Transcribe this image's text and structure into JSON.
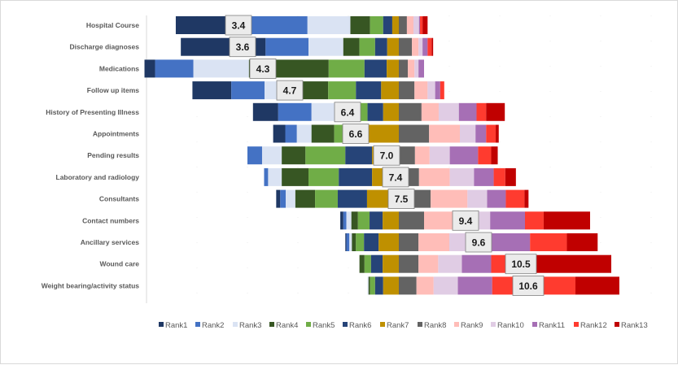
{
  "chart_data": {
    "type": "bar",
    "orientation": "horizontal",
    "stacked": true,
    "diverging": true,
    "units": "percent",
    "title": "",
    "xlabel": "",
    "ylabel": "",
    "grid": true,
    "legend_position": "bottom",
    "categories": [
      "Hospital Course",
      "Discharge diagnoses",
      "Medications",
      "Follow up items",
      "History of Presenting Illness",
      "Appointments",
      "Pending results",
      "Laboratory and radiology",
      "Consultants",
      "Contact numbers",
      "Ancillary services",
      "Wound care",
      "Weight bearing/activity status"
    ],
    "mean_rank_labels": [
      "3.4",
      "3.6",
      "4.3",
      "4.7",
      "6.4",
      "6.6",
      "7.0",
      "7.4",
      "7.5",
      "9.4",
      "9.6",
      "10.5",
      "10.6"
    ],
    "series": [
      {
        "name": "Rank1",
        "color": "#1f3864",
        "values": [
          14.8,
          16.8,
          2.1,
          7.7,
          5.0,
          2.4,
          0.0,
          0.0,
          0.8,
          0.6,
          0.2,
          0.0,
          0.0
        ]
      },
      {
        "name": "Rank2",
        "color": "#4472c4",
        "values": [
          11.3,
          8.5,
          7.6,
          6.6,
          6.6,
          2.3,
          2.9,
          0.8,
          1.1,
          0.6,
          0.6,
          0.0,
          0.0
        ]
      },
      {
        "name": "Rank3",
        "color": "#dae3f3",
        "values": [
          8.5,
          6.9,
          11.0,
          6.5,
          5.8,
          2.9,
          3.9,
          2.7,
          1.9,
          1.0,
          0.5,
          0.0,
          0.2
        ]
      },
      {
        "name": "Rank4",
        "color": "#375623",
        "values": [
          3.9,
          3.2,
          15.8,
          6.1,
          3.7,
          4.5,
          4.7,
          5.3,
          3.9,
          1.3,
          0.8,
          1.0,
          0.3
        ]
      },
      {
        "name": "Rank5",
        "color": "#70ad47",
        "values": [
          2.6,
          3.1,
          7.1,
          5.5,
          1.6,
          5.0,
          7.9,
          6.0,
          4.5,
          2.3,
          1.6,
          1.3,
          1.0
        ]
      },
      {
        "name": "Rank6",
        "color": "#264478",
        "values": [
          1.8,
          2.4,
          4.4,
          5.0,
          3.1,
          1.8,
          5.3,
          6.6,
          5.8,
          2.6,
          2.9,
          2.3,
          1.6
        ]
      },
      {
        "name": "Rank7",
        "color": "#bf9000",
        "values": [
          1.3,
          2.3,
          2.4,
          3.5,
          3.1,
          6.0,
          5.3,
          5.3,
          6.3,
          3.2,
          4.0,
          3.2,
          3.1
        ]
      },
      {
        "name": "Rank8",
        "color": "#636363",
        "values": [
          1.6,
          2.6,
          1.8,
          3.1,
          4.5,
          6.0,
          3.2,
          4.0,
          6.3,
          5.0,
          3.9,
          3.9,
          3.5
        ]
      },
      {
        "name": "Rank9",
        "color": "#ffbdb8",
        "values": [
          1.3,
          1.3,
          1.3,
          2.6,
          3.4,
          6.1,
          2.9,
          6.1,
          7.3,
          6.3,
          6.1,
          3.9,
          3.4
        ]
      },
      {
        "name": "Rank10",
        "color": "#e0cce4",
        "values": [
          1.1,
          0.8,
          0.8,
          1.5,
          4.0,
          3.1,
          4.0,
          4.8,
          3.9,
          6.8,
          8.4,
          4.7,
          4.8
        ]
      },
      {
        "name": "Rank11",
        "color": "#a66fb5",
        "values": [
          0.2,
          1.0,
          1.1,
          1.0,
          3.5,
          2.1,
          5.6,
          3.9,
          3.7,
          6.9,
          7.6,
          5.8,
          6.8
        ]
      },
      {
        "name": "Rank12",
        "color": "#ff3b2f",
        "values": [
          0.5,
          0.8,
          0.0,
          0.8,
          1.9,
          1.9,
          2.6,
          2.3,
          3.7,
          3.7,
          7.3,
          9.0,
          16.5
        ]
      },
      {
        "name": "Rank13",
        "color": "#c00000",
        "values": [
          1.0,
          0.3,
          0.0,
          0.0,
          3.7,
          0.6,
          1.3,
          2.1,
          0.8,
          9.2,
          6.1,
          14.8,
          8.7
        ]
      }
    ]
  }
}
